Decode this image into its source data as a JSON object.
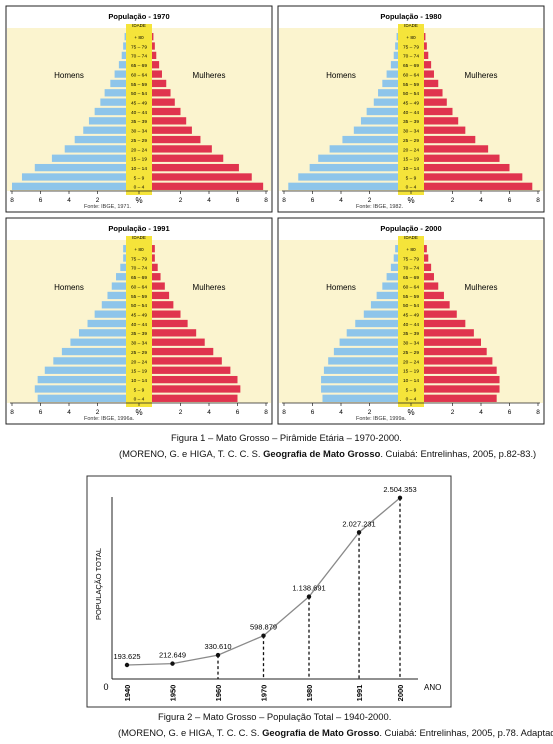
{
  "figure1": {
    "caption": "Figura 1 – Mato Grosso – Pirâmide Etária – 1970-2000.",
    "citation_pre": "(MORENO, G. e HIGA, T. C. C. S. ",
    "citation_bold": "Geografia de Mato Grosso",
    "citation_post": ". Cuiabá: Entrelinhas, 2005, p.82-83.)"
  },
  "figure2": {
    "caption": "Figura 2 – Mato Grosso – População Total – 1940-2000.",
    "citation_pre": "(MORENO, G. e HIGA, T. C. C. S. ",
    "citation_bold": "Geografia de Mato Grosso",
    "citation_post": ". Cuiabá: Entrelinhas, 2005, p.78. Adaptado.)"
  },
  "colors": {
    "men": "#8ec5ea",
    "women": "#e0344e",
    "center_band": "#f5e43a",
    "panel_bg": "#fbf4cf",
    "line": "#8a8a8a"
  },
  "chart_data": [
    {
      "type": "bar",
      "orientation": "horizontal",
      "title": "População - 1970",
      "age_label": "IDADE",
      "unit_label": "%",
      "left_label": "Homens",
      "right_label": "Mulheres",
      "source": "Fonte: IBGE, 1971.",
      "xticks": [
        "8",
        "6",
        "4",
        "2",
        "0",
        "2",
        "4",
        "6",
        "8"
      ],
      "xlim": [
        0,
        8
      ],
      "categories": [
        "0 – 4",
        "5 – 9",
        "10 – 14",
        "15 – 19",
        "20 – 24",
        "25 – 29",
        "30 – 34",
        "35 – 39",
        "40 – 44",
        "45 – 49",
        "50 – 54",
        "55 – 59",
        "60 – 64",
        "65 – 69",
        "70 – 74",
        "75 – 79",
        "+ 80"
      ],
      "series": [
        {
          "name": "Homens",
          "values": [
            8.0,
            7.3,
            6.4,
            5.2,
            4.3,
            3.6,
            3.0,
            2.6,
            2.2,
            1.8,
            1.5,
            1.1,
            0.8,
            0.5,
            0.3,
            0.2,
            0.1
          ]
        },
        {
          "name": "Mulheres",
          "values": [
            7.8,
            7.0,
            6.1,
            5.0,
            4.2,
            3.4,
            2.8,
            2.4,
            2.0,
            1.6,
            1.3,
            1.0,
            0.7,
            0.5,
            0.3,
            0.2,
            0.1
          ]
        }
      ]
    },
    {
      "type": "bar",
      "orientation": "horizontal",
      "title": "População - 1980",
      "age_label": "IDADE",
      "unit_label": "%",
      "left_label": "Homens",
      "right_label": "Mulheres",
      "source": "Fonte: IBGE, 1982.",
      "xticks": [
        "8",
        "6",
        "4",
        "2",
        "0",
        "2",
        "4",
        "6",
        "8"
      ],
      "xlim": [
        0,
        8
      ],
      "categories": [
        "0 – 4",
        "5 – 9",
        "10 – 14",
        "15 – 19",
        "20 – 24",
        "25 – 29",
        "30 – 34",
        "35 – 39",
        "40 – 44",
        "45 – 49",
        "50 – 54",
        "55 – 59",
        "60 – 64",
        "65 – 69",
        "70 – 74",
        "75 – 79",
        "+ 80"
      ],
      "series": [
        {
          "name": "Homens",
          "values": [
            7.7,
            7.0,
            6.2,
            5.6,
            4.8,
            3.9,
            3.1,
            2.6,
            2.2,
            1.7,
            1.4,
            1.1,
            0.8,
            0.5,
            0.3,
            0.2,
            0.1
          ]
        },
        {
          "name": "Mulheres",
          "values": [
            7.6,
            6.9,
            6.0,
            5.3,
            4.5,
            3.6,
            2.9,
            2.4,
            2.0,
            1.6,
            1.3,
            1.0,
            0.7,
            0.5,
            0.3,
            0.2,
            0.1
          ]
        }
      ]
    },
    {
      "type": "bar",
      "orientation": "horizontal",
      "title": "População - 1991",
      "age_label": "IDADE",
      "unit_label": "%",
      "left_label": "Homens",
      "right_label": "Mulheres",
      "source": "Fonte: IBGE, 1996a.",
      "xticks": [
        "8",
        "6",
        "4",
        "2",
        "0",
        "2",
        "4",
        "6",
        "8"
      ],
      "xlim": [
        0,
        8
      ],
      "categories": [
        "0 – 4",
        "5 – 9",
        "10 – 14",
        "15 – 19",
        "20 – 24",
        "25 – 29",
        "30 – 34",
        "35 – 39",
        "40 – 44",
        "45 – 49",
        "50 – 54",
        "55 – 59",
        "60 – 64",
        "65 – 69",
        "70 – 74",
        "75 – 79",
        "+ 80"
      ],
      "series": [
        {
          "name": "Homens",
          "values": [
            6.2,
            6.4,
            6.2,
            5.7,
            5.1,
            4.5,
            3.9,
            3.3,
            2.7,
            2.2,
            1.7,
            1.3,
            1.0,
            0.7,
            0.4,
            0.2,
            0.2
          ]
        },
        {
          "name": "Mulheres",
          "values": [
            6.0,
            6.2,
            6.0,
            5.5,
            4.9,
            4.3,
            3.7,
            3.1,
            2.5,
            2.0,
            1.5,
            1.2,
            0.9,
            0.6,
            0.4,
            0.2,
            0.2
          ]
        }
      ]
    },
    {
      "type": "bar",
      "orientation": "horizontal",
      "title": "População - 2000",
      "age_label": "IDADE",
      "unit_label": "%",
      "left_label": "Homens",
      "right_label": "Mulheres",
      "source": "Fonte: IBGE, 1999a.",
      "xticks": [
        "8",
        "6",
        "4",
        "2",
        "0",
        "2",
        "4",
        "6",
        "8"
      ],
      "xlim": [
        0,
        8
      ],
      "categories": [
        "0 – 4",
        "5 – 9",
        "10 – 14",
        "15 – 19",
        "20 – 24",
        "25 – 29",
        "30 – 34",
        "35 – 39",
        "40 – 44",
        "45 – 49",
        "50 – 54",
        "55 – 59",
        "60 – 64",
        "65 – 69",
        "70 – 74",
        "75 – 79",
        "+ 80"
      ],
      "series": [
        {
          "name": "Homens",
          "values": [
            5.3,
            5.4,
            5.4,
            5.2,
            4.9,
            4.5,
            4.1,
            3.6,
            3.0,
            2.4,
            1.9,
            1.5,
            1.1,
            0.8,
            0.5,
            0.3,
            0.2
          ]
        },
        {
          "name": "Mulheres",
          "values": [
            5.1,
            5.3,
            5.3,
            5.1,
            4.8,
            4.4,
            4.0,
            3.5,
            2.9,
            2.3,
            1.8,
            1.4,
            1.0,
            0.7,
            0.5,
            0.3,
            0.2
          ]
        }
      ]
    },
    {
      "type": "line",
      "ylabel": "POPULAÇÃO TOTAL",
      "xlabel": "ANO",
      "origin_label": "0",
      "x": [
        "1940",
        "1950",
        "1960",
        "1970",
        "1980",
        "1991",
        "2000"
      ],
      "values": [
        193625,
        212649,
        330610,
        598879,
        1138691,
        2027231,
        2504353
      ],
      "labels": [
        "193.625",
        "212.649",
        "330.610",
        "598.879",
        "1.138.691",
        "2.027.231",
        "2.504.353"
      ],
      "ylim": [
        0,
        3000000
      ]
    }
  ]
}
